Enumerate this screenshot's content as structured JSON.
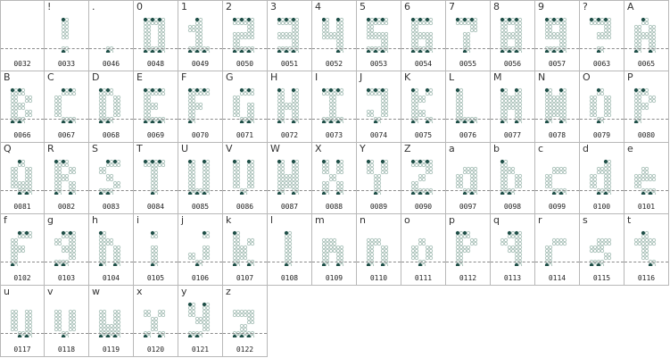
{
  "glyphs": [
    {
      "char": "",
      "code": "0032"
    },
    {
      "char": "!",
      "code": "0033"
    },
    {
      "char": ".",
      "code": "0046"
    },
    {
      "char": "0",
      "code": "0048"
    },
    {
      "char": "1",
      "code": "0049"
    },
    {
      "char": "2",
      "code": "0050"
    },
    {
      "char": "3",
      "code": "0051"
    },
    {
      "char": "4",
      "code": "0052"
    },
    {
      "char": "5",
      "code": "0053"
    },
    {
      "char": "6",
      "code": "0054"
    },
    {
      "char": "7",
      "code": "0055"
    },
    {
      "char": "8",
      "code": "0056"
    },
    {
      "char": "9",
      "code": "0057"
    },
    {
      "char": "?",
      "code": "0063"
    },
    {
      "char": "A",
      "code": "0065"
    },
    {
      "char": "B",
      "code": "0066"
    },
    {
      "char": "C",
      "code": "0067"
    },
    {
      "char": "D",
      "code": "0068"
    },
    {
      "char": "E",
      "code": "0069"
    },
    {
      "char": "F",
      "code": "0070"
    },
    {
      "char": "G",
      "code": "0071"
    },
    {
      "char": "H",
      "code": "0072"
    },
    {
      "char": "I",
      "code": "0073"
    },
    {
      "char": "J",
      "code": "0074"
    },
    {
      "char": "K",
      "code": "0075"
    },
    {
      "char": "L",
      "code": "0076"
    },
    {
      "char": "M",
      "code": "0077"
    },
    {
      "char": "N",
      "code": "0078"
    },
    {
      "char": "O",
      "code": "0079"
    },
    {
      "char": "P",
      "code": "0080"
    },
    {
      "char": "Q",
      "code": "0081"
    },
    {
      "char": "R",
      "code": "0082"
    },
    {
      "char": "S",
      "code": "0083"
    },
    {
      "char": "T",
      "code": "0084"
    },
    {
      "char": "U",
      "code": "0085"
    },
    {
      "char": "V",
      "code": "0086"
    },
    {
      "char": "W",
      "code": "0087"
    },
    {
      "char": "X",
      "code": "0088"
    },
    {
      "char": "Y",
      "code": "0089"
    },
    {
      "char": "Z",
      "code": "0090"
    },
    {
      "char": "a",
      "code": "0097"
    },
    {
      "char": "b",
      "code": "0098"
    },
    {
      "char": "c",
      "code": "0099"
    },
    {
      "char": "d",
      "code": "0100"
    },
    {
      "char": "e",
      "code": "0101"
    },
    {
      "char": "f",
      "code": "0102"
    },
    {
      "char": "g",
      "code": "0103"
    },
    {
      "char": "h",
      "code": "0104"
    },
    {
      "char": "i",
      "code": "0105"
    },
    {
      "char": "j",
      "code": "0106"
    },
    {
      "char": "k",
      "code": "0107"
    },
    {
      "char": "l",
      "code": "0108"
    },
    {
      "char": "m",
      "code": "0109"
    },
    {
      "char": "n",
      "code": "0110"
    },
    {
      "char": "o",
      "code": "0111"
    },
    {
      "char": "p",
      "code": "0112"
    },
    {
      "char": "q",
      "code": "0113"
    },
    {
      "char": "r",
      "code": "0114"
    },
    {
      "char": "s",
      "code": "0115"
    },
    {
      "char": "t",
      "code": "0116"
    },
    {
      "char": "u",
      "code": "0117"
    },
    {
      "char": "v",
      "code": "0118"
    },
    {
      "char": "w",
      "code": "0119"
    },
    {
      "char": "x",
      "code": "0120"
    },
    {
      "char": "y",
      "code": "0121"
    },
    {
      "char": "z",
      "code": "0122"
    }
  ]
}
